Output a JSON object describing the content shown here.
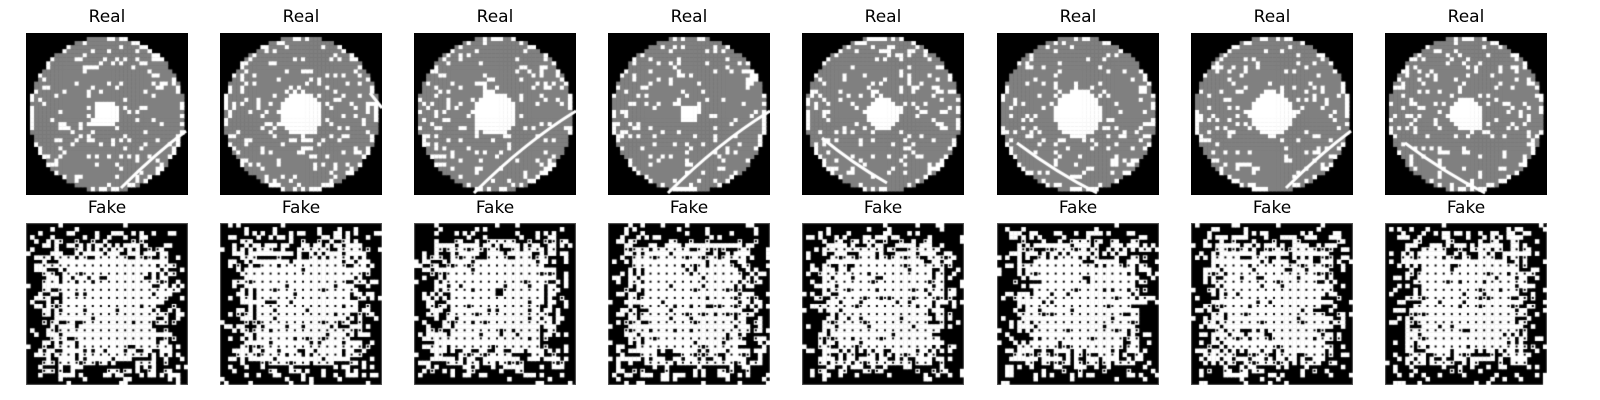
{
  "figure": {
    "rows": [
      {
        "kind": "real",
        "panels": [
          {
            "title": "Real",
            "hole": 0.17,
            "scratch": "bottom-right"
          },
          {
            "title": "Real",
            "hole": 0.26,
            "scratch": "right-edge"
          },
          {
            "title": "Real",
            "hole": 0.27,
            "scratch": "right-curve"
          },
          {
            "title": "Real",
            "hole": 0.12,
            "scratch": "right-curve"
          },
          {
            "title": "Real",
            "hole": 0.2,
            "scratch": "left-bottom"
          },
          {
            "title": "Real",
            "hole": 0.3,
            "scratch": "bottom-left"
          },
          {
            "title": "Real",
            "hole": 0.28,
            "scratch": "bottom-right"
          },
          {
            "title": "Real",
            "hole": 0.2,
            "scratch": "bottom-left"
          }
        ]
      },
      {
        "kind": "fake",
        "panels": [
          {
            "title": "Fake"
          },
          {
            "title": "Fake"
          },
          {
            "title": "Fake"
          },
          {
            "title": "Fake"
          },
          {
            "title": "Fake"
          },
          {
            "title": "Fake"
          },
          {
            "title": "Fake"
          },
          {
            "title": "Fake"
          }
        ]
      }
    ],
    "colors": {
      "background": "#000000",
      "wafer": "#808080",
      "defect": "#ffffff",
      "fake_light": "#ffffff",
      "fake_dark": "#000000"
    }
  }
}
